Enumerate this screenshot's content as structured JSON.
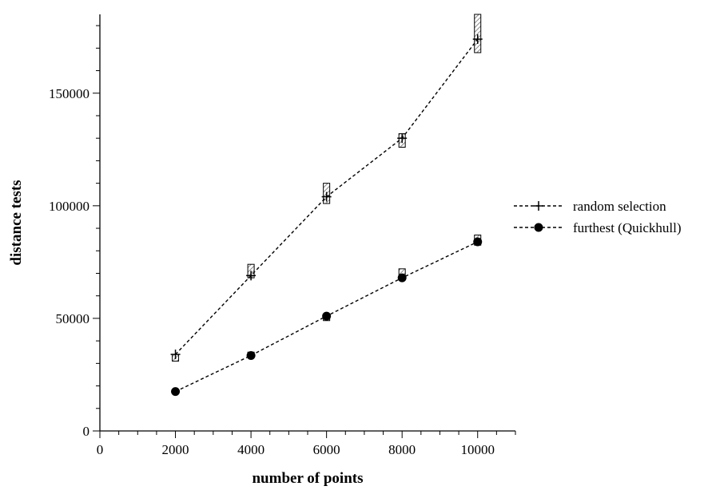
{
  "chart_data": {
    "type": "line",
    "title": "",
    "xlabel": "number of points",
    "ylabel": "distance tests",
    "xlim": [
      0,
      11000
    ],
    "ylim": [
      0,
      185000
    ],
    "x_ticks": [
      0,
      2000,
      4000,
      6000,
      8000,
      10000
    ],
    "x_tick_labels": [
      "0",
      "2000",
      "4000",
      "6000",
      "8000",
      "10000"
    ],
    "y_ticks": [
      0,
      50000,
      100000,
      150000
    ],
    "y_tick_labels": [
      "0",
      "50000",
      "100000",
      "150000"
    ],
    "grid": false,
    "legend_position": "right",
    "series": [
      {
        "name": "random selection",
        "marker": "plus",
        "x": [
          2000,
          4000,
          6000,
          8000,
          10000
        ],
        "y": [
          34000,
          69000,
          104000,
          130000,
          174000
        ],
        "range_low": [
          31000,
          68000,
          101000,
          126000,
          168000
        ],
        "range_high": [
          34000,
          74000,
          110000,
          132000,
          185000
        ]
      },
      {
        "name": "furthest (Quickhull)",
        "marker": "filled-circle",
        "x": [
          2000,
          4000,
          6000,
          8000,
          10000
        ],
        "y": [
          17500,
          33500,
          51000,
          68000,
          84000
        ],
        "range_low": [
          17000,
          33000,
          49000,
          67500,
          82500
        ],
        "range_high": [
          18000,
          35000,
          51500,
          72000,
          87000
        ]
      }
    ]
  }
}
